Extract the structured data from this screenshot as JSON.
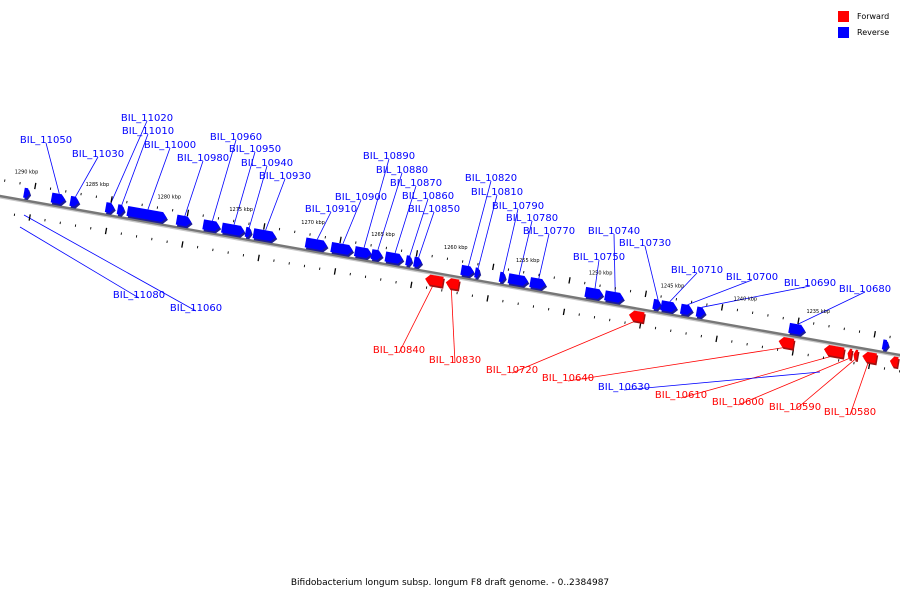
{
  "legend": {
    "forward": {
      "label": "Forward",
      "color": "#ff0000"
    },
    "reverse": {
      "label": "Reverse",
      "color": "#0000ff"
    }
  },
  "caption": "Bifidobacterium longum subsp. longum F8 draft genome. - 0..2384987",
  "ruler_labels": [
    "1290 kbp",
    "1285 kbp",
    "1280 kbp",
    "1275 kbp",
    "1270 kbp",
    "1265 kbp",
    "1260 kbp",
    "1255 kbp",
    "1250 kbp",
    "1245 kbp",
    "1240 kbp",
    "1235 kbp"
  ],
  "reverse_genes": [
    "BIL_11050",
    "BIL_11030",
    "BIL_11020",
    "BIL_11010",
    "BIL_11000",
    "BIL_10980",
    "BIL_10960",
    "BIL_10950",
    "BIL_10940",
    "BIL_10930",
    "BIL_10910",
    "BIL_10900",
    "BIL_10890",
    "BIL_10880",
    "BIL_10870",
    "BIL_10860",
    "BIL_10850",
    "BIL_10820",
    "BIL_10810",
    "BIL_10790",
    "BIL_10780",
    "BIL_10770",
    "BIL_10750",
    "BIL_10740",
    "BIL_10730",
    "BIL_10710",
    "BIL_10700",
    "BIL_10690",
    "BIL_10680",
    "BIL_11080",
    "BIL_11060",
    "BIL_10630"
  ],
  "forward_genes": [
    "BIL_10840",
    "BIL_10830",
    "BIL_10720",
    "BIL_10640",
    "BIL_10610",
    "BIL_10600",
    "BIL_10590",
    "BIL_10580"
  ]
}
